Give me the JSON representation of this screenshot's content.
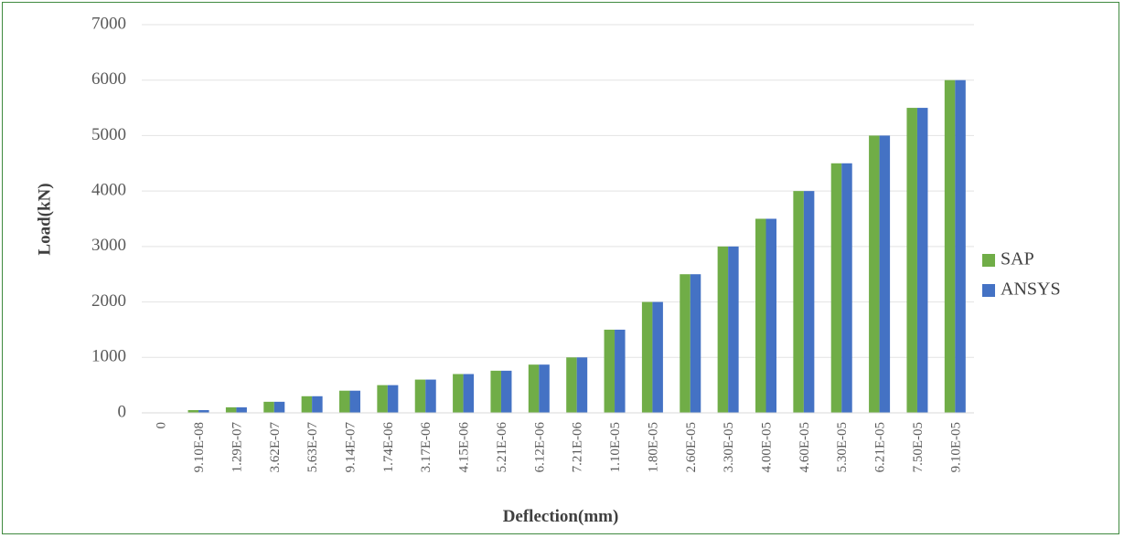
{
  "chart_data": {
    "type": "bar",
    "title": "",
    "xlabel": "Deflection(mm)",
    "ylabel": "Load(kN)",
    "ylim": [
      0,
      7000
    ],
    "yticks": [
      "0",
      "1000",
      "2000",
      "3000",
      "4000",
      "5000",
      "6000",
      "7000"
    ],
    "grid": true,
    "legend_position": "right",
    "categories": [
      "0",
      "9.10E-08",
      "1.29E-07",
      "3.62E-07",
      "5.63E-07",
      "9.14E-07",
      "1.74E-06",
      "3.17E-06",
      "4.15E-06",
      "5.21E-06",
      "6.12E-06",
      "7.21E-06",
      "1.10E-05",
      "1.80E-05",
      "2.60E-05",
      "3.30E-05",
      "4.00E-05",
      "4.60E-05",
      "5.30E-05",
      "6.21E-05",
      "7.50E-05",
      "9.10E-05"
    ],
    "series": [
      {
        "name": "SAP",
        "color": "#70ad47",
        "values": [
          0,
          50,
          100,
          200,
          300,
          400,
          500,
          600,
          700,
          760,
          870,
          1000,
          1500,
          2000,
          2500,
          3000,
          3500,
          4000,
          4500,
          5000,
          5500,
          6000
        ]
      },
      {
        "name": "ANSYS",
        "color": "#4472c4",
        "values": [
          0,
          50,
          100,
          200,
          300,
          400,
          500,
          600,
          700,
          760,
          870,
          1000,
          1500,
          2000,
          2500,
          3000,
          3500,
          4000,
          4500,
          5000,
          5500,
          6000
        ]
      }
    ]
  }
}
